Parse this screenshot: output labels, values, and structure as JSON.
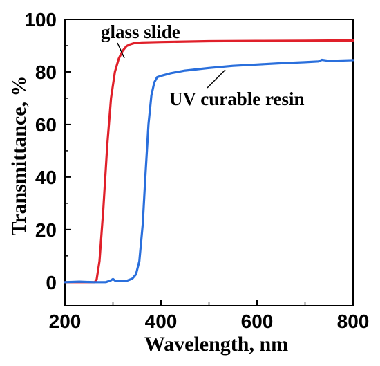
{
  "chart_data": {
    "type": "line",
    "title": "",
    "xlabel": "Wavelength, nm",
    "ylabel": "Transmittance, %",
    "xlim": [
      200,
      800
    ],
    "ylim": [
      -9,
      100
    ],
    "xticks": [
      200,
      400,
      600,
      800
    ],
    "yticks": [
      0,
      20,
      40,
      60,
      80,
      100
    ],
    "grid": false,
    "legend": "none (inline annotations)",
    "series": [
      {
        "name": "glass slide",
        "color": "#e0202a",
        "x": [
          200,
          262,
          266,
          272,
          280,
          288,
          296,
          304,
          312,
          320,
          328,
          336,
          345,
          360,
          400,
          500,
          600,
          700,
          800
        ],
        "y": [
          0,
          0,
          1,
          8,
          28,
          52,
          70,
          80,
          85,
          88,
          89.8,
          90.5,
          91,
          91.2,
          91.4,
          91.7,
          91.8,
          91.9,
          92
        ]
      },
      {
        "name": "UV curable resin",
        "color": "#2a6fdc",
        "x": [
          200,
          230,
          260,
          285,
          295,
          300,
          305,
          315,
          330,
          340,
          348,
          355,
          362,
          368,
          374,
          380,
          386,
          392,
          400,
          420,
          450,
          500,
          550,
          600,
          650,
          700,
          728,
          735,
          750,
          800
        ],
        "y": [
          0,
          0.2,
          0,
          0,
          0.6,
          1.2,
          0.5,
          0.4,
          0.6,
          1.3,
          3,
          8,
          22,
          42,
          60,
          71,
          76,
          78,
          78.5,
          79.5,
          80.5,
          81.5,
          82.3,
          82.8,
          83.3,
          83.7,
          84,
          84.6,
          84.2,
          84.5
        ]
      }
    ],
    "annotations": [
      {
        "text": "glass slide",
        "points_to": "glass slide",
        "at": [
          300,
          98
        ]
      },
      {
        "text": "UV curable resin",
        "points_to": "UV curable resin",
        "at": [
          500,
          77
        ]
      }
    ]
  }
}
